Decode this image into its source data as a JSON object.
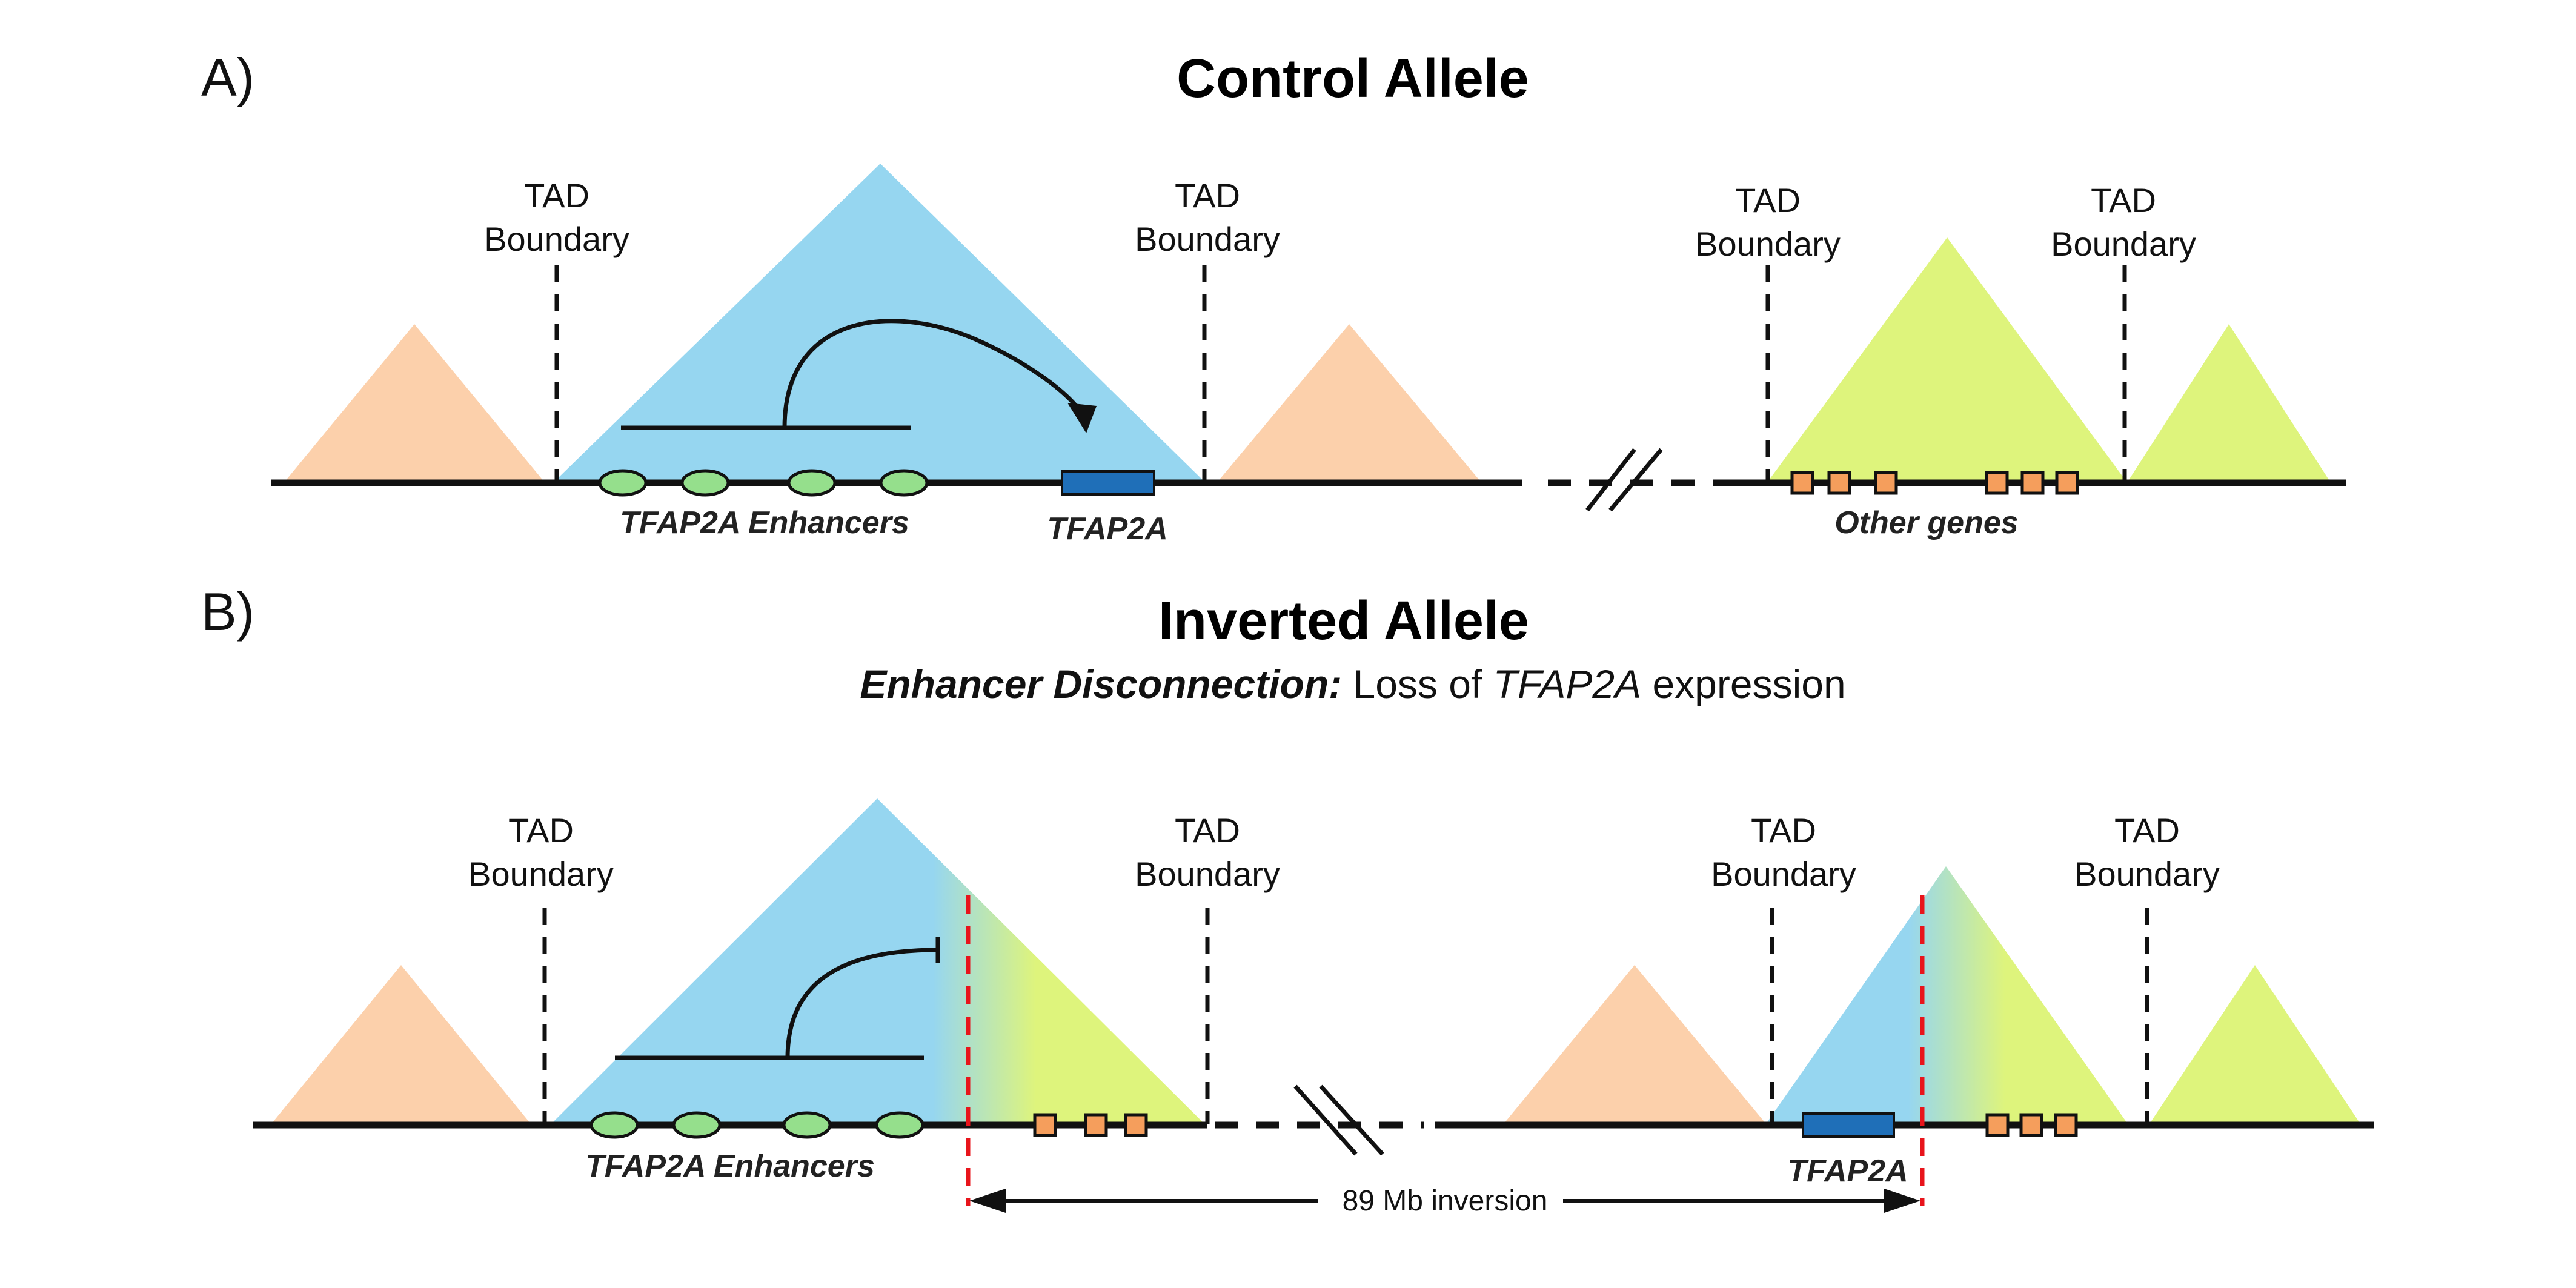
{
  "panel_a": {
    "label": "A)",
    "title": "Control Allele",
    "tad_boundary_line1": "TAD",
    "tad_boundary_line2": "Boundary",
    "enhancers_label": "TFAP2A Enhancers",
    "gene_label": "TFAP2A",
    "other_genes_label": "Other genes"
  },
  "panel_b": {
    "label": "B)",
    "title": "Inverted Allele",
    "subtitle_bold": "Enhancer Disconnection:",
    "subtitle_pre": " Loss of ",
    "subtitle_gene": "TFAP2A",
    "subtitle_post": " expression",
    "tad_boundary_line1": "TAD",
    "tad_boundary_line2": "Boundary",
    "enhancers_label": "TFAP2A Enhancers",
    "gene_label": "TFAP2A",
    "inversion_label": "89 Mb inversion"
  },
  "colors": {
    "tad_blue": "#96d6f0",
    "tad_peach": "#fcd0ab",
    "tad_green": "#def47c",
    "enhancer": "#95df8c",
    "other_gene": "#f59e5c",
    "tfap2a_gene": "#1f6fb8",
    "inversion_breakpoint": "#e8141b"
  }
}
